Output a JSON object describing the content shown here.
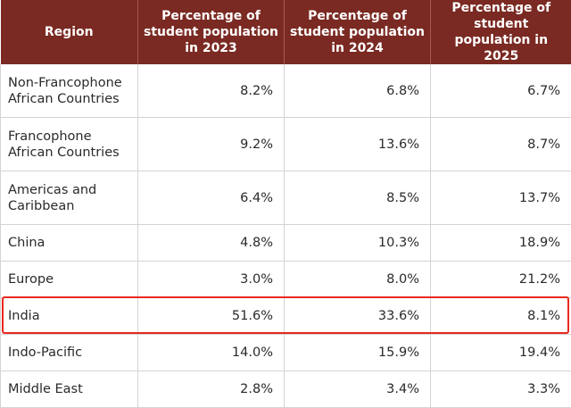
{
  "chart_data": {
    "type": "table",
    "columns": [
      "Region",
      "Percentage of student population in 2023",
      "Percentage of student population in 2024",
      "Percentage of student population in 2025"
    ],
    "rows": [
      {
        "region": "Non-Francophone African Countries",
        "y2023": "8.2%",
        "y2024": "6.8%",
        "y2025": "6.7%"
      },
      {
        "region": "Francophone African Countries",
        "y2023": "9.2%",
        "y2024": "13.6%",
        "y2025": "8.7%"
      },
      {
        "region": "Americas and Caribbean",
        "y2023": "6.4%",
        "y2024": "8.5%",
        "y2025": "13.7%"
      },
      {
        "region": "China",
        "y2023": "4.8%",
        "y2024": "10.3%",
        "y2025": "18.9%"
      },
      {
        "region": "Europe",
        "y2023": "3.0%",
        "y2024": "8.0%",
        "y2025": "21.2%"
      },
      {
        "region": "India",
        "y2023": "51.6%",
        "y2024": "33.6%",
        "y2025": "8.1%"
      },
      {
        "region": "Indo-Pacific",
        "y2023": "14.0%",
        "y2024": "15.9%",
        "y2025": "19.4%"
      },
      {
        "region": "Middle East",
        "y2023": "2.8%",
        "y2024": "3.4%",
        "y2025": "3.3%"
      }
    ],
    "highlighted_row": "India"
  },
  "colors": {
    "header_bg": "#7a2a22",
    "header_text": "#ffffff",
    "highlight_border": "#e8291f",
    "grid": "#d4d4d4"
  }
}
